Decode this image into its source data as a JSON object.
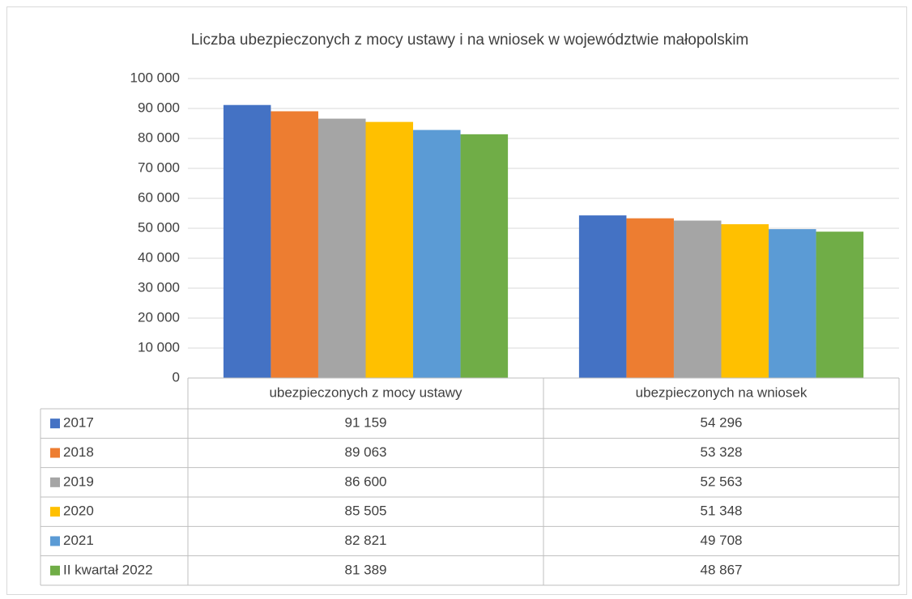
{
  "chart_data": {
    "type": "bar",
    "title": "Liczba ubezpieczonych z mocy ustawy i na wniosek w województwie małopolskim",
    "categories": [
      "ubezpieczonych z mocy ustawy",
      "ubezpieczonych na wniosek"
    ],
    "series": [
      {
        "name": "2017",
        "color": "#4472c4",
        "values": [
          91159,
          54296
        ],
        "value_labels": [
          "91 159",
          "54 296"
        ]
      },
      {
        "name": "2018",
        "color": "#ed7d31",
        "values": [
          89063,
          53328
        ],
        "value_labels": [
          "89 063",
          "53 328"
        ]
      },
      {
        "name": "2019",
        "color": "#a5a5a5",
        "values": [
          86600,
          52563
        ],
        "value_labels": [
          "86 600",
          "52 563"
        ]
      },
      {
        "name": "2020",
        "color": "#ffc000",
        "values": [
          85505,
          51348
        ],
        "value_labels": [
          "85 505",
          "51 348"
        ]
      },
      {
        "name": "2021",
        "color": "#5b9bd5",
        "values": [
          82821,
          49708
        ],
        "value_labels": [
          "82 821",
          "49 708"
        ]
      },
      {
        "name": "II kwartał 2022",
        "color": "#70ad47",
        "values": [
          81389,
          48867
        ],
        "value_labels": [
          "81 389",
          "48 867"
        ]
      }
    ],
    "ylim": [
      0,
      100000
    ],
    "yticks": [
      0,
      {
        "value": 10000,
        "label": "10 000"
      },
      {
        "value": 20000,
        "label": "20 000"
      },
      {
        "value": 30000,
        "label": "30 000"
      },
      {
        "value": 40000,
        "label": "40 000"
      },
      {
        "value": 50000,
        "label": "50 000"
      },
      {
        "value": 60000,
        "label": "60 000"
      },
      {
        "value": 70000,
        "label": "70 000"
      },
      {
        "value": 80000,
        "label": "80 000"
      },
      {
        "value": 90000,
        "label": "90 000"
      },
      {
        "value": 100000,
        "label": "100 000"
      }
    ],
    "grid": true
  }
}
